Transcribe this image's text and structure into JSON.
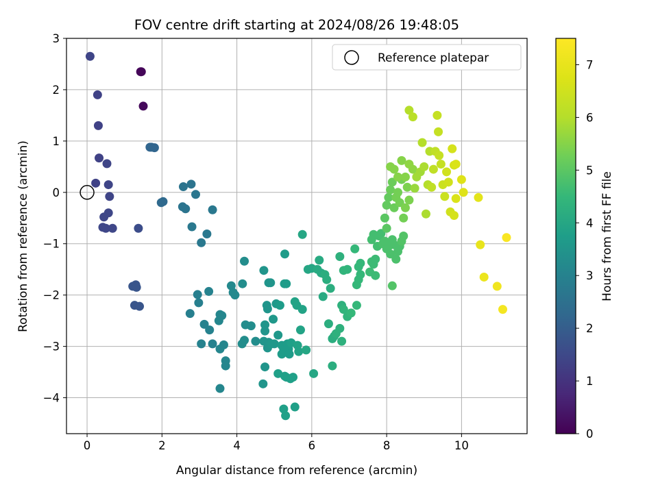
{
  "chart_data": {
    "type": "scatter",
    "title": "FOV centre drift starting at 2024/08/26 19:48:05",
    "xlabel": "Angular distance from reference (arcmin)",
    "ylabel": "Rotation from reference (arcmin)",
    "xlim": [
      -0.55,
      11.75
    ],
    "ylim": [
      -4.7,
      3.0
    ],
    "xticks": [
      "0",
      "2",
      "4",
      "6",
      "8",
      "10"
    ],
    "xtick_values": [
      0,
      2,
      4,
      6,
      8,
      10
    ],
    "yticks": [
      "−4",
      "−3",
      "−2",
      "−1",
      "0",
      "1",
      "2",
      "3"
    ],
    "ytick_values": [
      -4,
      -3,
      -2,
      -1,
      0,
      1,
      2,
      3
    ],
    "grid": true,
    "legend_position": "top-right",
    "reference": {
      "label": "Reference platepar",
      "x": 0,
      "y": 0
    },
    "colorbar": {
      "label": "Hours from first FF file",
      "colormap": "viridis",
      "range": [
        0,
        7.5
      ],
      "ticks": [
        "0",
        "1",
        "2",
        "3",
        "4",
        "5",
        "6",
        "7"
      ],
      "tick_values": [
        0,
        1,
        2,
        3,
        4,
        5,
        6,
        7
      ]
    },
    "points": [
      [
        1.43,
        2.35,
        0.1
      ],
      [
        1.45,
        2.35,
        0.1
      ],
      [
        1.5,
        1.68,
        0.15
      ],
      [
        0.08,
        2.65,
        1.4
      ],
      [
        0.28,
        1.9,
        1.35
      ],
      [
        0.3,
        1.3,
        1.35
      ],
      [
        0.32,
        0.67,
        1.35
      ],
      [
        0.53,
        0.56,
        1.4
      ],
      [
        0.23,
        0.18,
        1.35
      ],
      [
        0.57,
        0.15,
        1.4
      ],
      [
        0.6,
        -0.08,
        1.4
      ],
      [
        0.57,
        -0.4,
        1.45
      ],
      [
        0.45,
        -0.48,
        1.45
      ],
      [
        0.42,
        -0.68,
        1.45
      ],
      [
        0.5,
        -0.7,
        1.45
      ],
      [
        0.68,
        -0.7,
        1.45
      ],
      [
        1.37,
        -0.7,
        1.6
      ],
      [
        1.22,
        -1.83,
        1.8
      ],
      [
        1.3,
        -1.8,
        1.8
      ],
      [
        1.32,
        -1.85,
        1.8
      ],
      [
        1.27,
        -2.2,
        1.8
      ],
      [
        1.4,
        -2.22,
        1.8
      ],
      [
        1.68,
        0.88,
        2.2
      ],
      [
        1.72,
        0.88,
        2.2
      ],
      [
        1.8,
        0.87,
        2.2
      ],
      [
        1.98,
        -0.2,
        2.3
      ],
      [
        2.03,
        -0.18,
        2.3
      ],
      [
        2.57,
        0.11,
        2.6
      ],
      [
        2.55,
        -0.28,
        2.6
      ],
      [
        2.63,
        -0.32,
        2.6
      ],
      [
        2.78,
        0.16,
        2.6
      ],
      [
        2.9,
        -0.04,
        2.65
      ],
      [
        2.8,
        -0.67,
        2.7
      ],
      [
        3.05,
        -0.98,
        2.7
      ],
      [
        3.2,
        -0.81,
        2.7
      ],
      [
        3.35,
        -0.34,
        2.7
      ],
      [
        2.75,
        -2.36,
        2.9
      ],
      [
        2.95,
        -1.99,
        2.9
      ],
      [
        2.98,
        -2.15,
        2.9
      ],
      [
        3.05,
        -2.95,
        3.0
      ],
      [
        3.13,
        -2.57,
        3.0
      ],
      [
        3.25,
        -1.93,
        3.0
      ],
      [
        3.27,
        -2.68,
        3.0
      ],
      [
        3.35,
        -2.95,
        3.0
      ],
      [
        3.52,
        -2.5,
        3.1
      ],
      [
        3.55,
        -3.05,
        3.1
      ],
      [
        3.55,
        -2.38,
        3.1
      ],
      [
        3.6,
        -2.4,
        3.1
      ],
      [
        3.65,
        -2.97,
        3.1
      ],
      [
        3.7,
        -3.28,
        3.1
      ],
      [
        3.7,
        -3.38,
        3.1
      ],
      [
        3.55,
        -3.82,
        3.1
      ],
      [
        3.85,
        -1.82,
        3.2
      ],
      [
        3.9,
        -1.95,
        3.2
      ],
      [
        3.95,
        -2.0,
        3.2
      ],
      [
        4.15,
        -1.78,
        3.3
      ],
      [
        4.2,
        -1.34,
        3.3
      ],
      [
        4.23,
        -2.58,
        3.3
      ],
      [
        4.2,
        -2.88,
        3.3
      ],
      [
        4.14,
        -2.95,
        3.3
      ],
      [
        4.38,
        -2.6,
        3.3
      ],
      [
        4.5,
        -2.9,
        3.3
      ],
      [
        4.72,
        -1.52,
        3.5
      ],
      [
        4.75,
        -2.58,
        3.5
      ],
      [
        4.75,
        -2.7,
        3.5
      ],
      [
        4.72,
        -2.9,
        3.5
      ],
      [
        4.8,
        -2.2,
        3.5
      ],
      [
        4.82,
        -2.27,
        3.5
      ],
      [
        4.85,
        -2.92,
        3.5
      ],
      [
        4.82,
        -3.03,
        3.5
      ],
      [
        4.85,
        -1.76,
        3.5
      ],
      [
        4.9,
        -1.76,
        3.5
      ],
      [
        4.97,
        -2.47,
        3.6
      ],
      [
        4.92,
        -2.95,
        3.6
      ],
      [
        5.0,
        -2.95,
        3.6
      ],
      [
        5.05,
        -2.17,
        3.6
      ],
      [
        5.1,
        -2.78,
        3.6
      ],
      [
        5.15,
        -2.2,
        3.7
      ],
      [
        5.2,
        -2.98,
        3.7
      ],
      [
        5.2,
        -3.15,
        3.7
      ],
      [
        5.25,
        -3.07,
        3.7
      ],
      [
        5.27,
        -1.78,
        3.7
      ],
      [
        5.28,
        -1.2,
        3.7
      ],
      [
        5.32,
        -1.78,
        3.7
      ],
      [
        5.35,
        -2.95,
        3.7
      ],
      [
        5.38,
        -3.05,
        3.7
      ],
      [
        5.4,
        -3.15,
        3.7
      ],
      [
        5.45,
        -2.93,
        3.8
      ],
      [
        5.1,
        -3.53,
        3.8
      ],
      [
        5.28,
        -3.58,
        3.8
      ],
      [
        5.32,
        -3.6,
        3.8
      ],
      [
        5.43,
        -3.63,
        3.8
      ],
      [
        5.5,
        -3.6,
        3.8
      ],
      [
        5.25,
        -4.22,
        3.8
      ],
      [
        5.3,
        -4.35,
        3.8
      ],
      [
        5.55,
        -4.18,
        3.8
      ],
      [
        4.75,
        -3.4,
        3.5
      ],
      [
        4.7,
        -3.73,
        3.5
      ],
      [
        5.55,
        -2.13,
        3.9
      ],
      [
        5.6,
        -2.2,
        3.9
      ],
      [
        5.62,
        -2.98,
        3.9
      ],
      [
        5.65,
        -3.1,
        3.9
      ],
      [
        5.7,
        -2.68,
        3.9
      ],
      [
        5.75,
        -2.28,
        3.9
      ],
      [
        5.75,
        -0.82,
        4.0
      ],
      [
        5.85,
        -3.07,
        4.0
      ],
      [
        5.9,
        -1.5,
        4.0
      ],
      [
        6.0,
        -1.48,
        4.0
      ],
      [
        6.05,
        -3.53,
        4.0
      ],
      [
        6.15,
        -1.5,
        4.1
      ],
      [
        6.2,
        -1.32,
        4.1
      ],
      [
        6.25,
        -1.57,
        4.1
      ],
      [
        6.3,
        -2.03,
        4.1
      ],
      [
        6.35,
        -1.6,
        4.2
      ],
      [
        6.4,
        -1.7,
        4.2
      ],
      [
        6.45,
        -2.56,
        4.2
      ],
      [
        6.5,
        -1.87,
        4.2
      ],
      [
        6.55,
        -3.38,
        4.2
      ],
      [
        6.55,
        -2.85,
        4.2
      ],
      [
        6.6,
        -2.8,
        4.2
      ],
      [
        6.65,
        -2.75,
        4.3
      ],
      [
        6.75,
        -1.25,
        4.3
      ],
      [
        6.75,
        -2.65,
        4.3
      ],
      [
        6.8,
        -2.2,
        4.3
      ],
      [
        6.8,
        -2.9,
        4.3
      ],
      [
        6.85,
        -1.52,
        4.4
      ],
      [
        6.85,
        -2.28,
        4.4
      ],
      [
        6.95,
        -1.5,
        4.4
      ],
      [
        6.95,
        -2.42,
        4.4
      ],
      [
        7.05,
        -2.35,
        4.5
      ],
      [
        7.15,
        -1.1,
        4.5
      ],
      [
        7.2,
        -2.2,
        4.5
      ],
      [
        7.2,
        -1.8,
        4.5
      ],
      [
        7.25,
        -1.45,
        4.5
      ],
      [
        7.25,
        -1.7,
        4.5
      ],
      [
        7.3,
        -1.6,
        4.5
      ],
      [
        7.3,
        -1.38,
        4.5
      ],
      [
        7.55,
        -1.55,
        4.6
      ],
      [
        7.6,
        -1.35,
        4.6
      ],
      [
        7.65,
        -1.4,
        4.6
      ],
      [
        7.7,
        -1.3,
        4.6
      ],
      [
        7.7,
        -1.62,
        4.6
      ],
      [
        7.65,
        -0.82,
        4.7
      ],
      [
        7.6,
        -0.92,
        4.7
      ],
      [
        7.75,
        -1.05,
        4.7
      ],
      [
        7.8,
        -0.85,
        4.7
      ],
      [
        7.85,
        -0.8,
        4.7
      ],
      [
        7.9,
        -1.0,
        4.8
      ],
      [
        7.95,
        -0.95,
        4.8
      ],
      [
        8.0,
        -1.1,
        4.8
      ],
      [
        8.05,
        -1.05,
        4.8
      ],
      [
        8.1,
        -1.2,
        4.8
      ],
      [
        8.15,
        -0.92,
        4.8
      ],
      [
        8.2,
        -1.02,
        4.8
      ],
      [
        8.25,
        -1.3,
        4.8
      ],
      [
        8.3,
        -1.15,
        4.8
      ],
      [
        8.35,
        -1.05,
        4.8
      ],
      [
        8.4,
        -0.95,
        4.9
      ],
      [
        8.45,
        -0.85,
        4.9
      ],
      [
        8.15,
        -1.82,
        4.9
      ],
      [
        8.0,
        -0.7,
        5.0
      ],
      [
        7.95,
        -0.5,
        5.0
      ],
      [
        8.0,
        -0.25,
        5.1
      ],
      [
        8.05,
        -0.1,
        5.1
      ],
      [
        8.1,
        0.05,
        5.2
      ],
      [
        8.15,
        0.2,
        5.2
      ],
      [
        8.2,
        -0.3,
        5.2
      ],
      [
        8.25,
        -0.1,
        5.3
      ],
      [
        8.3,
        0.0,
        5.3
      ],
      [
        8.35,
        -0.2,
        5.3
      ],
      [
        8.4,
        0.25,
        5.3
      ],
      [
        8.45,
        -0.5,
        5.3
      ],
      [
        8.5,
        -0.3,
        5.4
      ],
      [
        8.55,
        0.1,
        5.4
      ],
      [
        8.6,
        -0.15,
        5.4
      ],
      [
        8.1,
        0.5,
        5.5
      ],
      [
        8.2,
        0.45,
        5.5
      ],
      [
        8.3,
        0.3,
        5.5
      ],
      [
        8.4,
        0.62,
        5.5
      ],
      [
        8.5,
        0.3,
        5.5
      ],
      [
        8.6,
        0.55,
        5.6
      ],
      [
        8.7,
        0.45,
        5.6
      ],
      [
        8.75,
        0.08,
        5.7
      ],
      [
        8.8,
        0.3,
        5.8
      ],
      [
        8.9,
        0.4,
        5.8
      ],
      [
        9.0,
        0.5,
        5.9
      ],
      [
        9.05,
        -0.42,
        5.9
      ],
      [
        9.1,
        0.15,
        6.0
      ],
      [
        9.15,
        0.8,
        6.0
      ],
      [
        8.95,
        0.97,
        6.0
      ],
      [
        8.6,
        1.6,
        6.0
      ],
      [
        8.7,
        1.47,
        6.1
      ],
      [
        9.2,
        0.1,
        6.2
      ],
      [
        9.25,
        0.45,
        6.2
      ],
      [
        9.3,
        0.8,
        6.2
      ],
      [
        9.35,
        1.5,
        6.3
      ],
      [
        9.38,
        1.18,
        6.3
      ],
      [
        9.4,
        0.72,
        6.3
      ],
      [
        9.45,
        0.55,
        6.3
      ],
      [
        9.5,
        0.15,
        6.4
      ],
      [
        9.55,
        -0.08,
        6.4
      ],
      [
        9.6,
        0.4,
        6.5
      ],
      [
        9.65,
        0.2,
        6.5
      ],
      [
        9.7,
        -0.38,
        6.5
      ],
      [
        9.75,
        0.85,
        6.6
      ],
      [
        9.8,
        -0.45,
        6.6
      ],
      [
        9.8,
        0.53,
        6.6
      ],
      [
        9.85,
        0.55,
        6.7
      ],
      [
        9.85,
        -0.12,
        6.7
      ],
      [
        10.0,
        0.25,
        6.8
      ],
      [
        10.05,
        0.0,
        6.8
      ],
      [
        10.45,
        -0.1,
        6.9
      ],
      [
        10.5,
        -1.02,
        7.0
      ],
      [
        10.6,
        -1.65,
        7.1
      ],
      [
        10.95,
        -1.83,
        7.2
      ],
      [
        11.1,
        -2.28,
        7.3
      ],
      [
        11.2,
        -0.88,
        7.4
      ]
    ]
  }
}
